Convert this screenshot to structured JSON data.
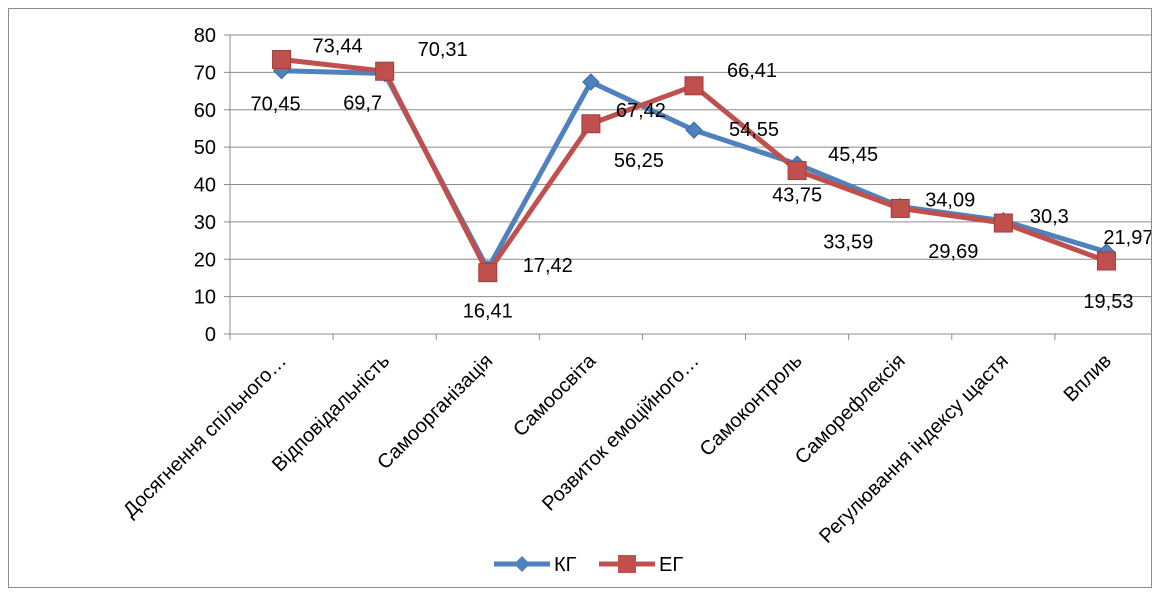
{
  "chart_data": {
    "type": "line",
    "title": "",
    "xlabel": "",
    "ylabel": "",
    "ylim": [
      0,
      80
    ],
    "yticks": [
      0,
      10,
      20,
      30,
      40,
      50,
      60,
      70,
      80
    ],
    "grid": true,
    "legend_position": "bottom",
    "categories": [
      "Досягнення спільного…",
      "Відповідальність",
      "Самоорганізація",
      "Самоосвіта",
      "Розвиток емоційного…",
      "Самоконтроль",
      "Саморефлексія",
      "Регулювання індексу щастя",
      "Вплив"
    ],
    "series": [
      {
        "name": "КГ",
        "color": "#4f81bd",
        "marker": "diamond",
        "values": [
          70.45,
          69.7,
          17.42,
          67.42,
          54.55,
          45.45,
          34.09,
          30.3,
          21.97
        ],
        "labels": [
          "70,45",
          "69,7",
          "17,42",
          "67,42",
          "54,55",
          "45,45",
          "34,09",
          "30,3",
          "21,97"
        ]
      },
      {
        "name": "ЕГ",
        "color": "#c0504d",
        "marker": "square",
        "values": [
          73.44,
          70.31,
          16.41,
          56.25,
          66.41,
          43.75,
          33.59,
          29.69,
          19.53
        ],
        "labels": [
          "73,44",
          "70,31",
          "16,41",
          "56,25",
          "66,41",
          "43,75",
          "33,59",
          "29,69",
          "19,53"
        ]
      }
    ]
  }
}
